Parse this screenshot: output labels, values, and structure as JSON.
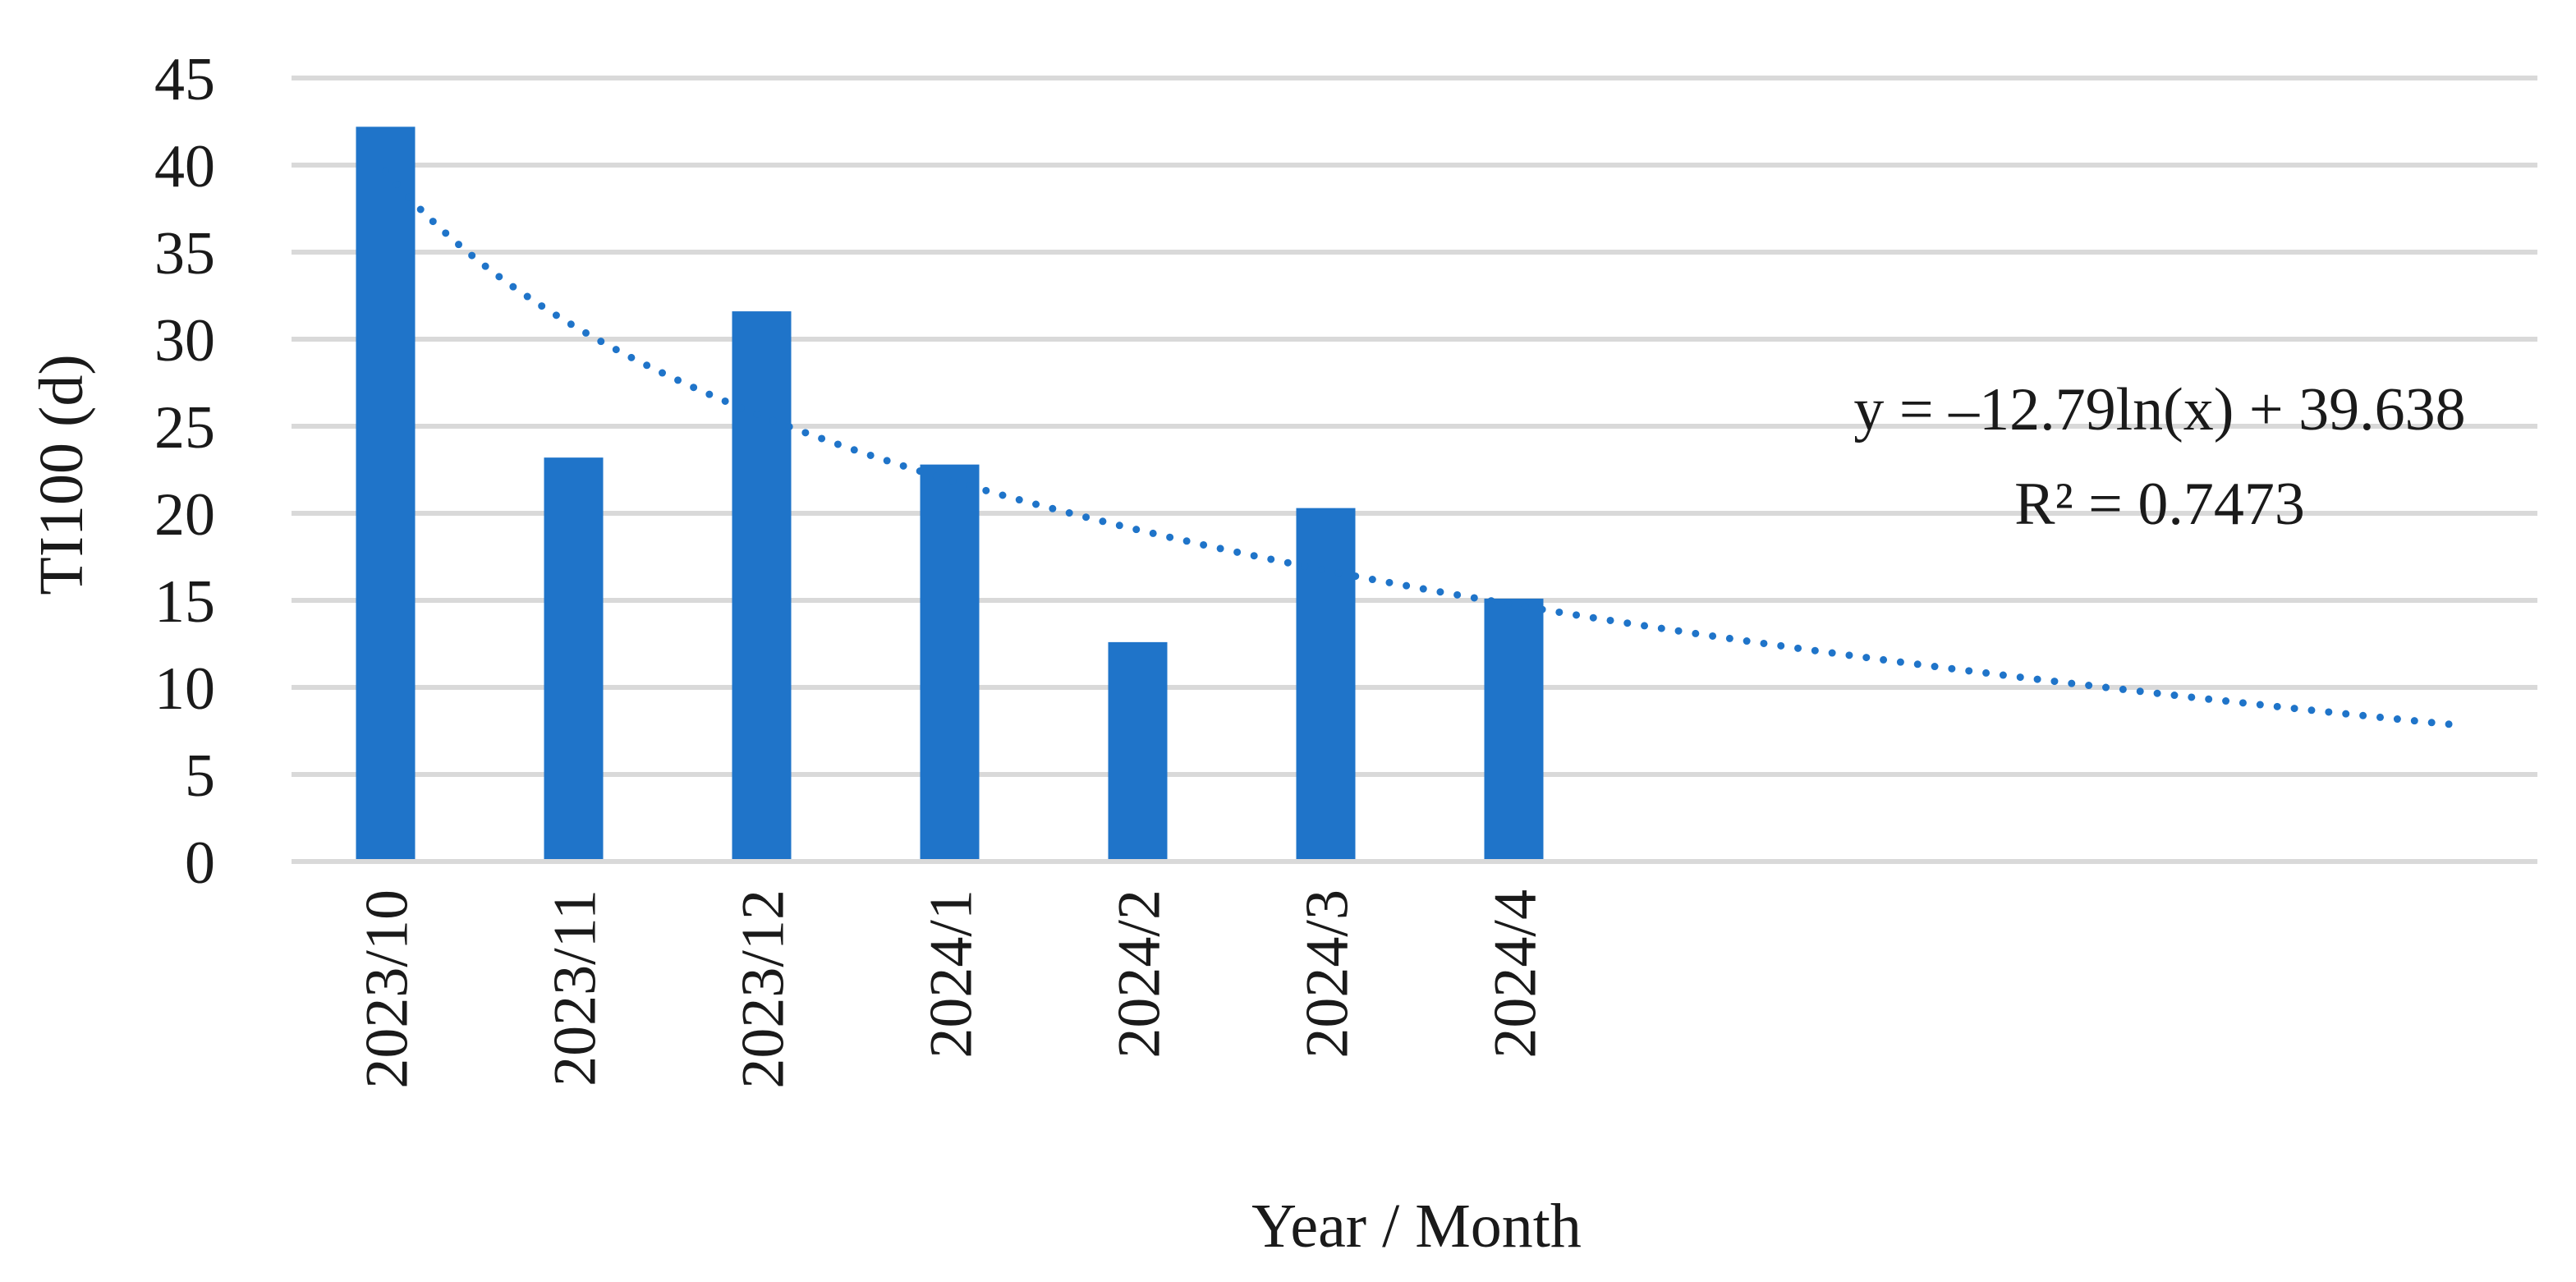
{
  "chart_data": {
    "type": "bar",
    "title": "",
    "xlabel": "Year / Month",
    "ylabel": "TI100 (d)",
    "categories": [
      "2023/10",
      "2023/11",
      "2023/12",
      "2024/1",
      "2024/2",
      "2024/3",
      "2024/4"
    ],
    "series": [
      {
        "values": [
          42.2,
          23.2,
          31.6,
          22.8,
          12.6,
          20.3,
          15.1
        ],
        "color": "#1f74c9"
      }
    ],
    "ylim": [
      0,
      45
    ],
    "yticks": [
      0,
      5,
      10,
      15,
      20,
      25,
      30,
      35,
      40,
      45
    ],
    "grid": true,
    "legend": "none",
    "trendline": {
      "type": "logarithmic",
      "a": -12.79,
      "b": 39.638,
      "x_range": [
        1,
        12
      ],
      "style": "dotted",
      "color": "#1f74c9",
      "equation_label": "y = –12.79ln(x) + 39.638",
      "r2_label": "R² = 0.7473"
    }
  }
}
